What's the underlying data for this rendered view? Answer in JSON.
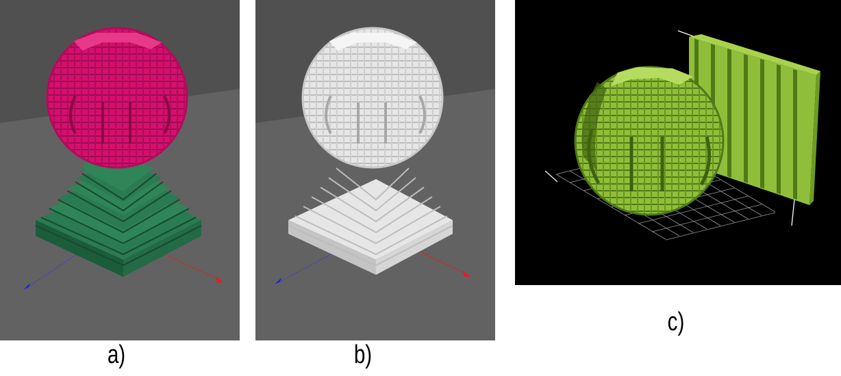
{
  "figure": {
    "panels": [
      {
        "id": "a",
        "caption": "a)",
        "sphere_color": "#d4106e",
        "base_color": "#1f6b46",
        "background": "#505050"
      },
      {
        "id": "b",
        "caption": "b)",
        "sphere_color": "#e6e6e6",
        "base_color": "#e6e6e6",
        "background": "#505050"
      },
      {
        "id": "c",
        "caption": "c)",
        "sphere_color": "#8fbf3a",
        "plane_color": "#8fbf3a",
        "background": "#000000"
      }
    ]
  }
}
